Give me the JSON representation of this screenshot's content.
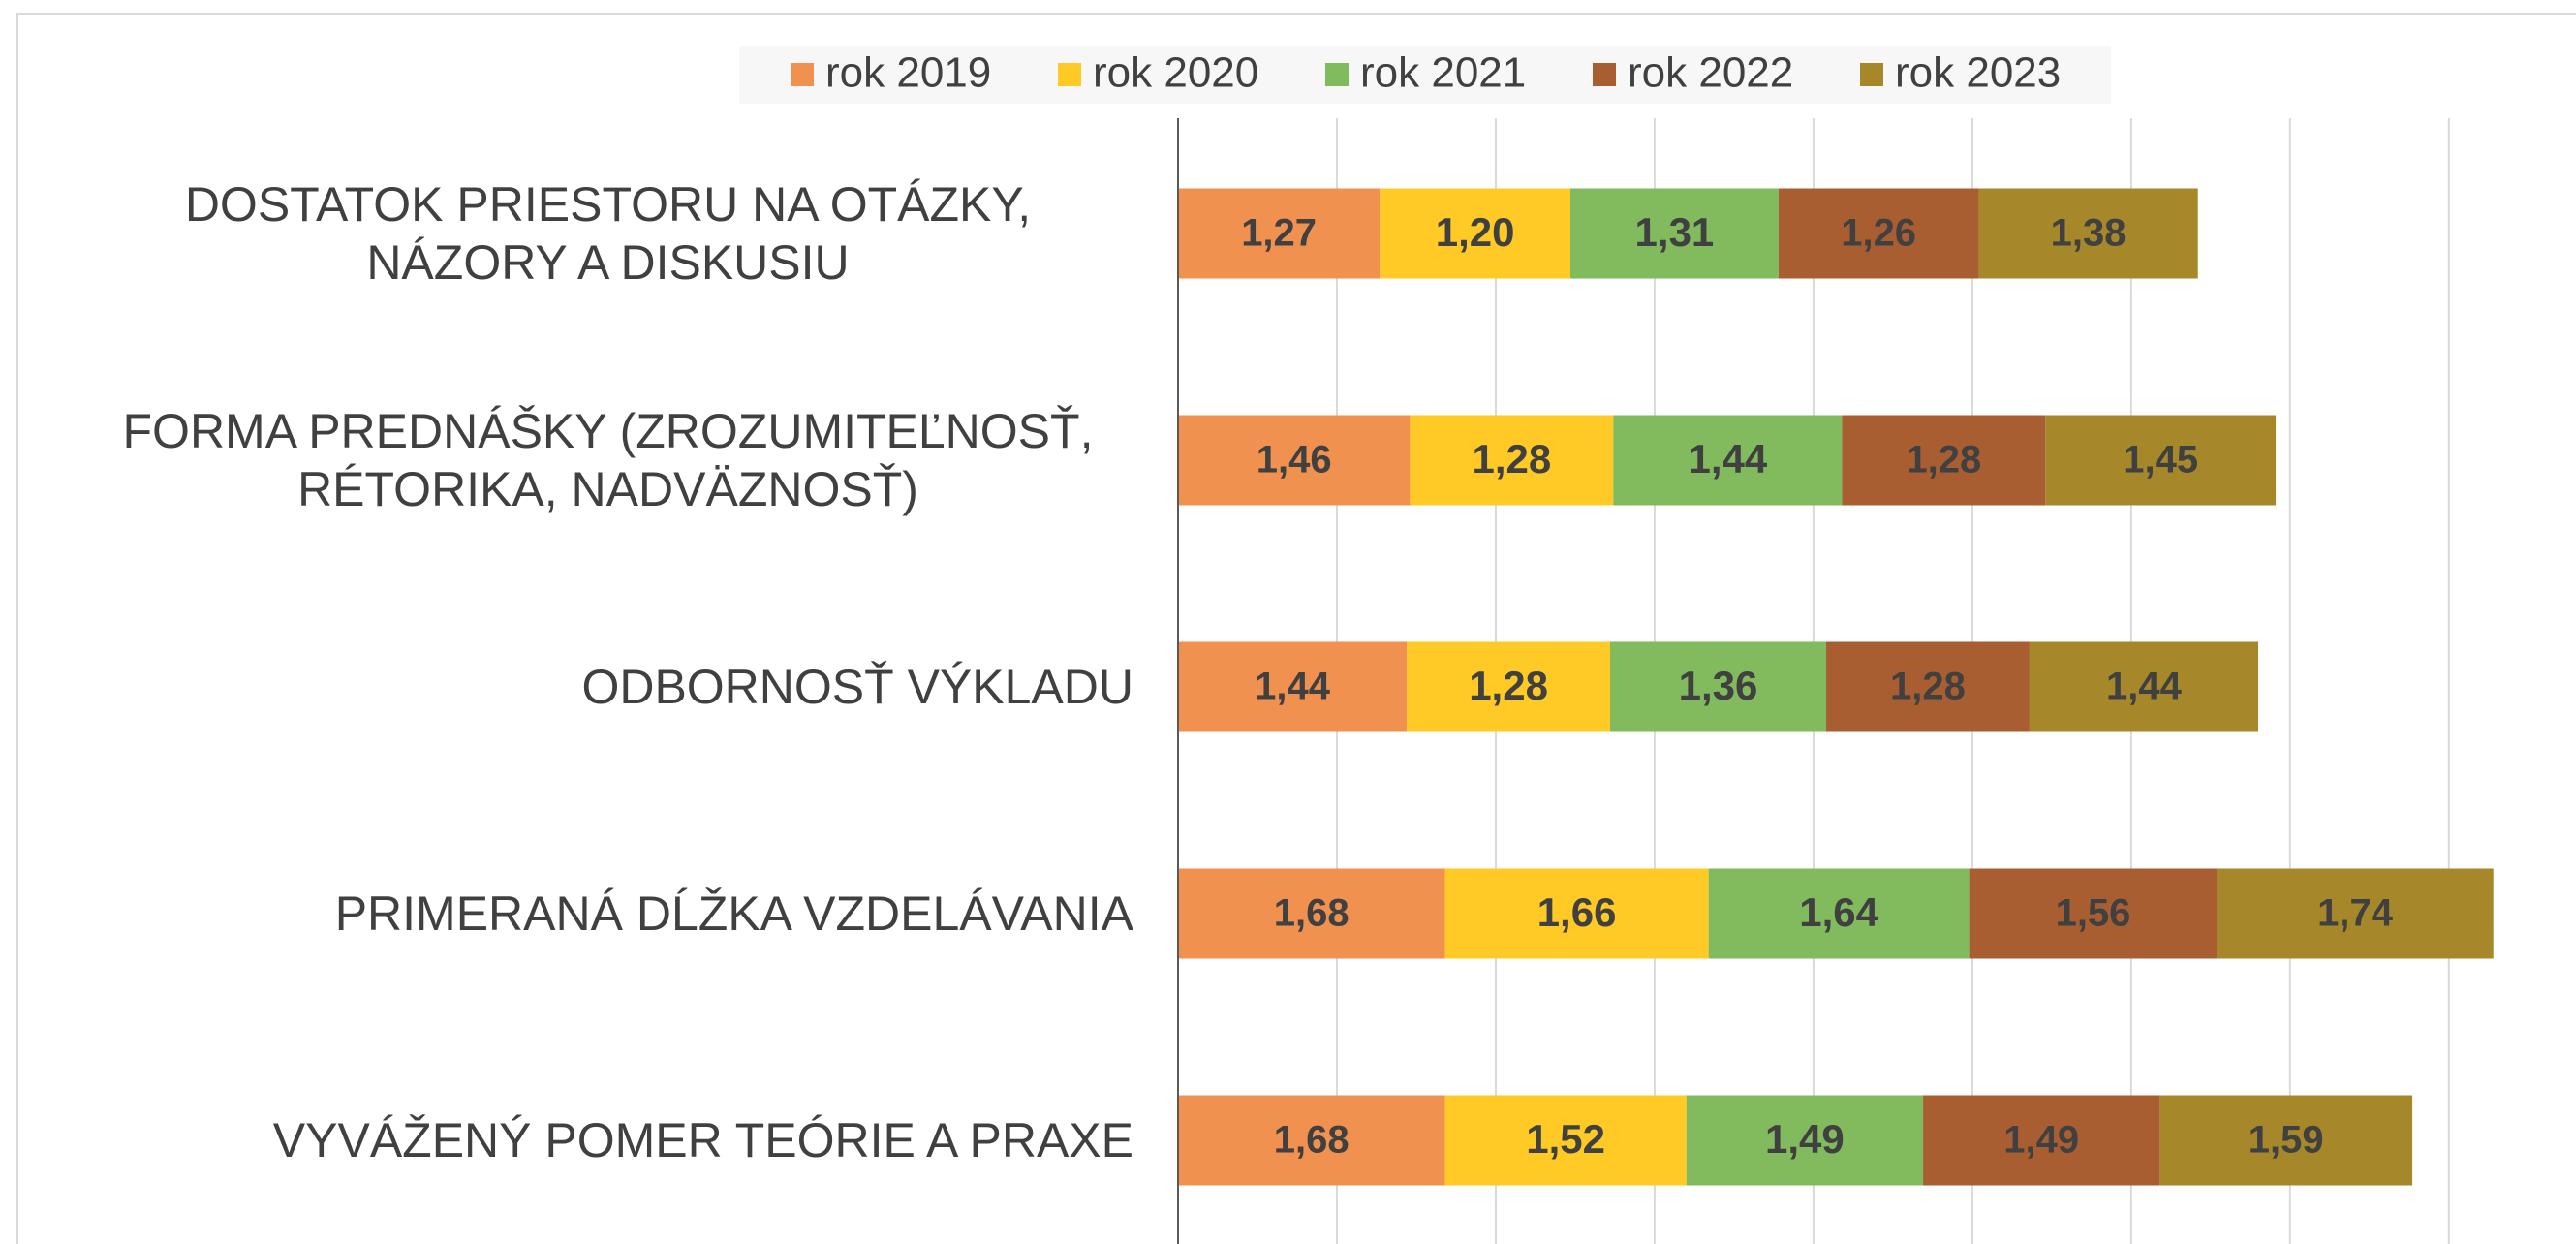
{
  "chart_data": {
    "type": "stacked-bar-horizontal",
    "categories": [
      "DOSTATOK PRIESTORU NA OTÁZKY, NÁZORY A DISKUSIU",
      "FORMA PREDNÁŠKY (ZROZUMITEĽNOSŤ, RÉTORIKA, NADVÄZNOSŤ)",
      "ODBORNOSŤ VÝKLADU",
      "PRIMERANÁ DĹŽKA VZDELÁVANIA",
      "VYVÁŽENÝ POMER TEÓRIE A PRAXE"
    ],
    "series": [
      {
        "name": "rok 2019",
        "color": "#f0914f",
        "values": [
          1.27,
          1.46,
          1.44,
          1.68,
          1.68
        ],
        "value_labels": [
          "1,27",
          "1,46",
          "1,44",
          "1,68",
          "1,68"
        ]
      },
      {
        "name": "rok 2020",
        "color": "#ffc926",
        "values": [
          1.2,
          1.28,
          1.28,
          1.66,
          1.52
        ],
        "value_labels": [
          "1,20",
          "1,28",
          "1,28",
          "1,66",
          "1,52"
        ]
      },
      {
        "name": "rok 2021",
        "color": "#82ba5e",
        "values": [
          1.31,
          1.44,
          1.36,
          1.64,
          1.49
        ],
        "value_labels": [
          "1,31",
          "1,44",
          "1,36",
          "1,64",
          "1,49"
        ]
      },
      {
        "name": "rok 2022",
        "color": "#a95e31",
        "values": [
          1.26,
          1.28,
          1.28,
          1.56,
          1.49
        ],
        "value_labels": [
          "1,26",
          "1,28",
          "1,28",
          "1,56",
          "1,49"
        ]
      },
      {
        "name": "rok 2023",
        "color": "#a6882a",
        "values": [
          1.38,
          1.45,
          1.44,
          1.74,
          1.59
        ],
        "value_labels": [
          "1,38",
          "1,45",
          "1,44",
          "1,74",
          "1,59"
        ]
      }
    ],
    "xlim": [
      0,
      8.8
    ],
    "xticks": [
      0,
      1,
      2,
      3,
      4,
      5,
      6,
      7,
      8
    ],
    "grid": true,
    "legend": "top"
  }
}
